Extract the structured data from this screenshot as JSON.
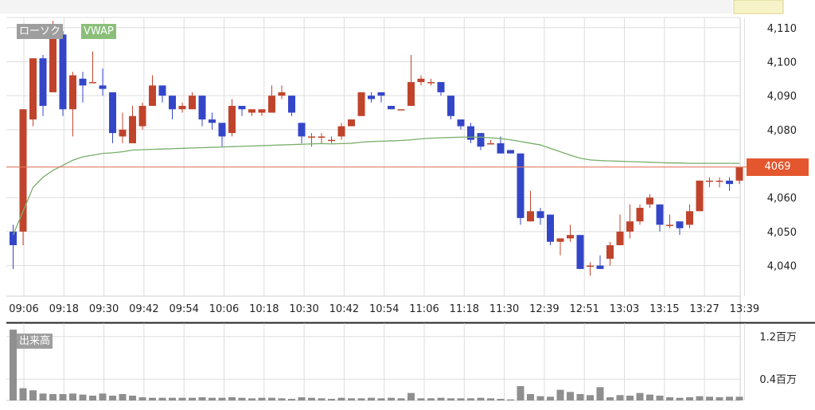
{
  "legend": {
    "candle": "ローソク",
    "vwap": "VWAP",
    "volume": "出来高"
  },
  "last_price_label": "4069",
  "colors": {
    "up": "#c0442c",
    "down": "#3446c8",
    "vwap": "#79ad6a",
    "last_line": "#e07a5f",
    "volume": "#8f8f8f",
    "grid": "#dddddd"
  },
  "chart_data": [
    {
      "type": "candlestick",
      "ylim": [
        4031,
        4113
      ],
      "y_ticks": [
        "4,110",
        "4,100",
        "4,090",
        "4,080",
        "4,060",
        "4,050",
        "4,040"
      ],
      "y_tick_values": [
        4110,
        4100,
        4090,
        4080,
        4060,
        4050,
        4040
      ],
      "x_tick_labels": [
        "09:06",
        "09:18",
        "09:30",
        "09:42",
        "09:54",
        "10:06",
        "10:18",
        "10:30",
        "10:42",
        "10:54",
        "11:06",
        "11:18",
        "11:30",
        "12:39",
        "12:51",
        "13:03",
        "13:15",
        "13:27",
        "13:39"
      ],
      "last_price": 4069,
      "candles": [
        [
          4050,
          4046,
          4052,
          4039
        ],
        [
          4050,
          4086,
          4086,
          4046
        ],
        [
          4083,
          4101,
          4101,
          4081
        ],
        [
          4101,
          4087,
          4102,
          4084
        ],
        [
          4091,
          4107,
          4112,
          4091
        ],
        [
          4108,
          4086,
          4109,
          4084
        ],
        [
          4086,
          4096,
          4097,
          4078
        ],
        [
          4095,
          4093,
          4097,
          4088
        ],
        [
          4094,
          4094,
          4103,
          4094
        ],
        [
          4093,
          4092,
          4098,
          4090
        ],
        [
          4091,
          4079,
          4091,
          4076
        ],
        [
          4078,
          4080,
          4085,
          4076
        ],
        [
          4076,
          4084,
          4087,
          4076
        ],
        [
          4081,
          4087,
          4088,
          4080
        ],
        [
          4087,
          4093,
          4096,
          4087
        ],
        [
          4093,
          4090,
          4093,
          4088
        ],
        [
          4090,
          4086,
          4089,
          4083
        ],
        [
          4086,
          4087,
          4088,
          4085
        ],
        [
          4086,
          4090,
          4091,
          4086
        ],
        [
          4090,
          4083,
          4090,
          4081
        ],
        [
          4083,
          4082,
          4085,
          4080
        ],
        [
          4082,
          4078,
          4082,
          4075
        ],
        [
          4079,
          4087,
          4089,
          4078
        ],
        [
          4087,
          4086,
          4087,
          4084
        ],
        [
          4085,
          4086,
          4086,
          4084
        ],
        [
          4085,
          4086,
          4086,
          4084
        ],
        [
          4085,
          4090,
          4093,
          4085
        ],
        [
          4090,
          4091,
          4093,
          4089
        ],
        [
          4090,
          4085,
          4090,
          4084
        ],
        [
          4082,
          4078,
          4082,
          4076
        ],
        [
          4078,
          4078,
          4079,
          4075
        ],
        [
          4078,
          4078,
          4079,
          4076
        ],
        [
          4077,
          4077,
          4078,
          4076
        ],
        [
          4078,
          4081,
          4082,
          4077
        ],
        [
          4081,
          4083,
          4083,
          4081
        ],
        [
          4084,
          4091,
          4091,
          4084
        ],
        [
          4090,
          4089,
          4091,
          4088
        ],
        [
          4091,
          4090,
          4091,
          4088
        ],
        [
          4087,
          4086,
          4087,
          4086
        ],
        [
          4086,
          4086,
          4086,
          4086
        ],
        [
          4087,
          4094,
          4102,
          4087
        ],
        [
          4094,
          4095,
          4096,
          4093
        ],
        [
          4094,
          4094,
          4095,
          4093
        ],
        [
          4094,
          4091,
          4094,
          4090
        ],
        [
          4090,
          4084,
          4090,
          4083
        ],
        [
          4083,
          4081,
          4083,
          4080
        ],
        [
          4081,
          4077,
          4082,
          4076
        ],
        [
          4079,
          4075,
          4079,
          4074
        ],
        [
          4076,
          4076,
          4077,
          4076
        ],
        [
          4076,
          4073,
          4078,
          4073
        ],
        [
          4074,
          4073,
          4074,
          4073
        ],
        [
          4073,
          4054,
          4073,
          4052
        ],
        [
          4053,
          4056,
          4062,
          4053
        ],
        [
          4056,
          4054,
          4057,
          4052
        ],
        [
          4055,
          4047,
          4055,
          4046
        ],
        [
          4047,
          4048,
          4048,
          4043
        ],
        [
          4048,
          4049,
          4052,
          4047
        ],
        [
          4049,
          4039,
          4049,
          4039
        ],
        [
          4040,
          4040,
          4041,
          4037
        ],
        [
          4040,
          4039,
          4043,
          4039
        ],
        [
          4042,
          4046,
          4047,
          4040
        ],
        [
          4046,
          4050,
          4055,
          4046
        ],
        [
          4050,
          4053,
          4058,
          4048
        ],
        [
          4053,
          4057,
          4058,
          4052
        ],
        [
          4058,
          4060,
          4061,
          4057
        ],
        [
          4058,
          4052,
          4058,
          4050
        ],
        [
          4052,
          4052,
          4055,
          4051
        ],
        [
          4053,
          4051,
          4053,
          4049
        ],
        [
          4052,
          4056,
          4058,
          4051
        ],
        [
          4056,
          4065,
          4065,
          4056
        ],
        [
          4065,
          4065,
          4066,
          4063
        ],
        [
          4065,
          4065,
          4066,
          4063
        ],
        [
          4065,
          4064,
          4066,
          4062
        ],
        [
          4065,
          4069,
          4069,
          4064
        ]
      ],
      "vwap": [
        4049,
        4056,
        4063,
        4066,
        4068,
        4069.5,
        4071,
        4072,
        4072.5,
        4073,
        4073.2,
        4073.5,
        4074,
        4074.1,
        4074.2,
        4074.3,
        4074.4,
        4074.5,
        4074.6,
        4074.7,
        4074.8,
        4074.9,
        4075,
        4075.1,
        4075.2,
        4075.3,
        4075.4,
        4075.5,
        4075.6,
        4075.7,
        4075.8,
        4075.9,
        4075.8,
        4075.9,
        4076,
        4076.3,
        4076.5,
        4076.6,
        4076.7,
        4076.8,
        4077,
        4077.3,
        4077.5,
        4077.6,
        4077.7,
        4077.8,
        4077.8,
        4077.8,
        4077.6,
        4077.4,
        4077,
        4076.5,
        4076,
        4075.5,
        4074.5,
        4073.5,
        4072.5,
        4071.6,
        4071.1,
        4070.9,
        4070.8,
        4070.7,
        4070.6,
        4070.5,
        4070.4,
        4070.3,
        4070.2,
        4070.2,
        4070.1,
        4070.1,
        4070.1,
        4070.1,
        4070.1,
        4070.1
      ]
    },
    {
      "type": "bar",
      "title": "出来高",
      "y_ticks": [
        "1.2百万",
        "0.4百万"
      ],
      "y_tick_values": [
        1.2,
        0.4
      ],
      "ylim": [
        0,
        1.45
      ],
      "values": [
        1.33,
        0.23,
        0.19,
        0.13,
        0.12,
        0.12,
        0.13,
        0.11,
        0.09,
        0.13,
        0.09,
        0.12,
        0.09,
        0.06,
        0.05,
        0.05,
        0.05,
        0.05,
        0.05,
        0.06,
        0.05,
        0.05,
        0.06,
        0.05,
        0.04,
        0.05,
        0.05,
        0.04,
        0.03,
        0.06,
        0.05,
        0.04,
        0.03,
        0.05,
        0.04,
        0.04,
        0.05,
        0.04,
        0.05,
        0.04,
        0.14,
        0.04,
        0.04,
        0.05,
        0.04,
        0.04,
        0.04,
        0.05,
        0.04,
        0.03,
        0.02,
        0.27,
        0.12,
        0.08,
        0.07,
        0.2,
        0.16,
        0.12,
        0.1,
        0.25,
        0.06,
        0.1,
        0.09,
        0.14,
        0.11,
        0.09,
        0.06,
        0.05,
        0.06,
        0.08,
        0.07,
        0.06,
        0.07,
        0.07
      ]
    }
  ]
}
